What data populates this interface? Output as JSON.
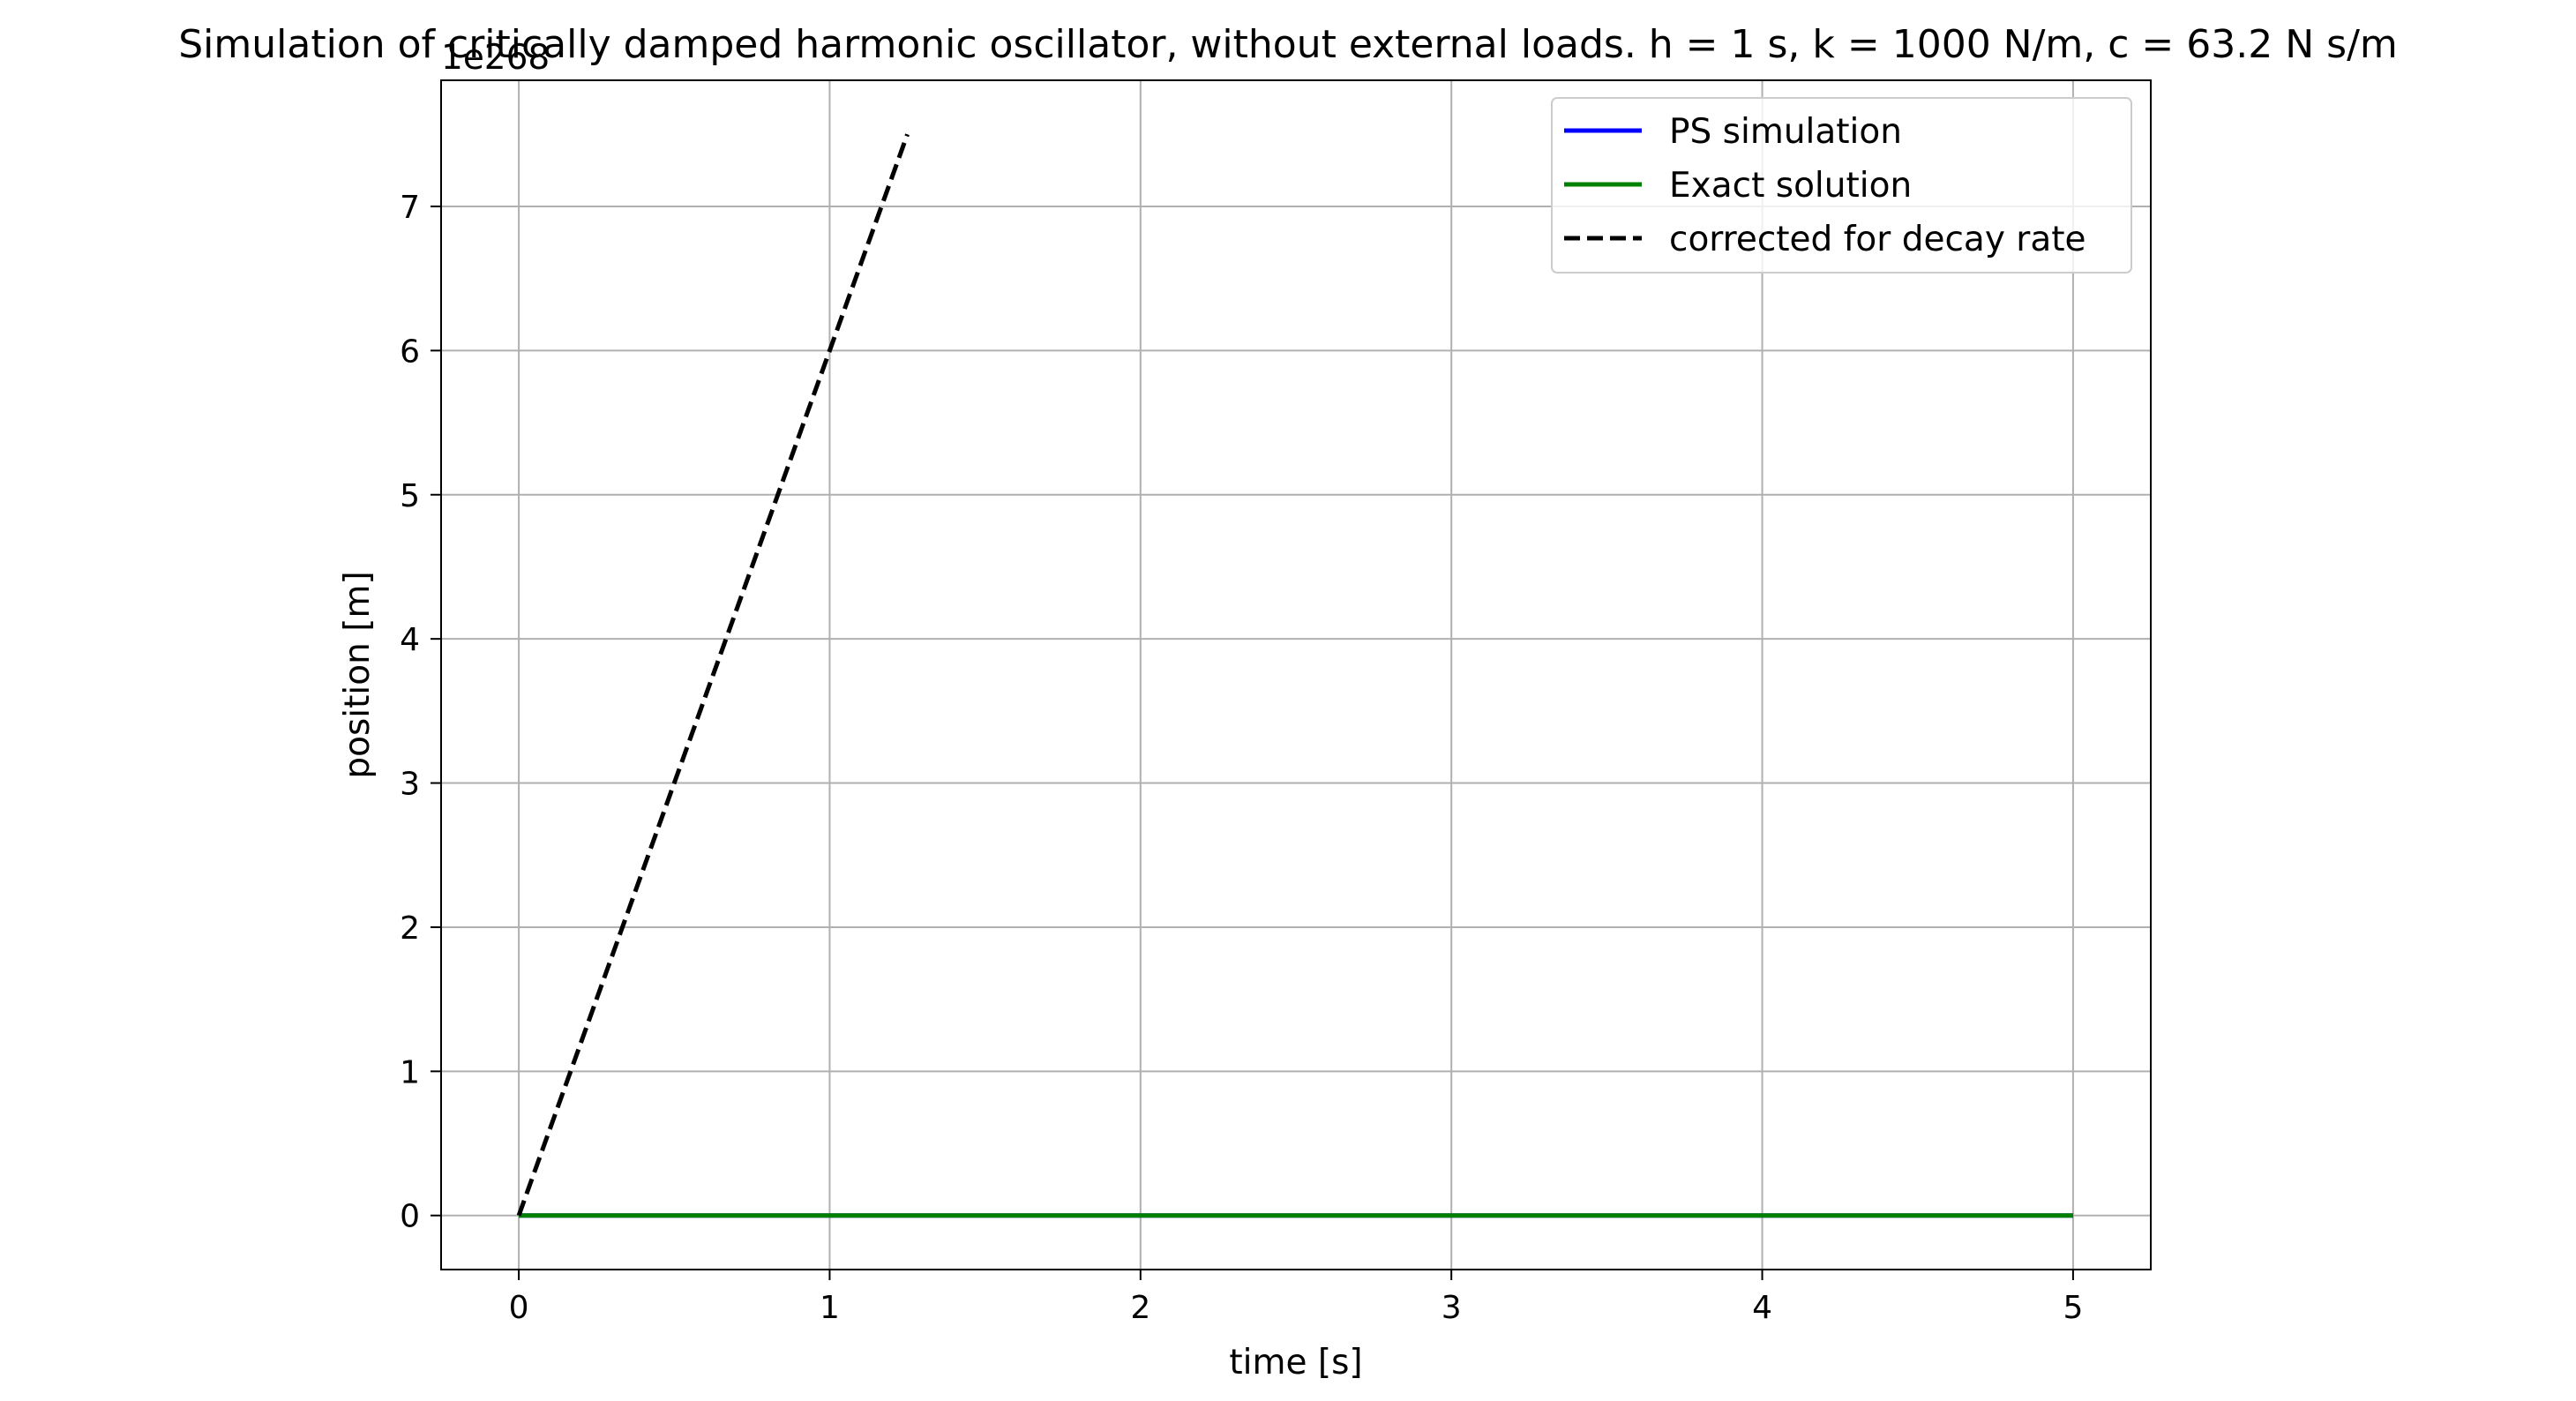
{
  "chart_data": {
    "type": "line",
    "title": "Simulation of critically damped harmonic oscillator, without external loads. h = 1 s, k = 1000 N/m, c = 63.2 N s/m",
    "xlabel": "time [s]",
    "ylabel": "position [m]",
    "y_offset_label": "1e268",
    "xlim": [
      -0.25,
      5.25
    ],
    "ylim": [
      -0.375,
      7.875
    ],
    "grid": true,
    "legend_position": "top-right",
    "x_ticks": [
      0,
      1,
      2,
      3,
      4,
      5
    ],
    "x_tick_labels": [
      "0",
      "1",
      "2",
      "3",
      "4",
      "5"
    ],
    "y_ticks": [
      0,
      1,
      2,
      3,
      4,
      5,
      6,
      7
    ],
    "y_tick_labels": [
      "0",
      "1",
      "2",
      "3",
      "4",
      "5",
      "6",
      "7"
    ],
    "series": [
      {
        "name": "PS simulation",
        "color": "#0000ff",
        "style": "solid",
        "x": [
          0,
          1,
          2,
          3,
          4,
          5
        ],
        "y": [
          0,
          0,
          0,
          0,
          0,
          0
        ]
      },
      {
        "name": "Exact solution",
        "color": "#008000",
        "style": "solid",
        "x": [
          0,
          1,
          2,
          3,
          4,
          5
        ],
        "y": [
          0,
          0,
          0,
          0,
          0,
          0
        ]
      },
      {
        "name": "corrected for decay rate",
        "color": "#000000",
        "style": "dashed",
        "x": [
          0,
          0.25,
          0.5,
          0.75,
          1.0,
          1.25
        ],
        "y": [
          0,
          1.5,
          3.0,
          4.5,
          6.0,
          7.5
        ]
      }
    ]
  }
}
